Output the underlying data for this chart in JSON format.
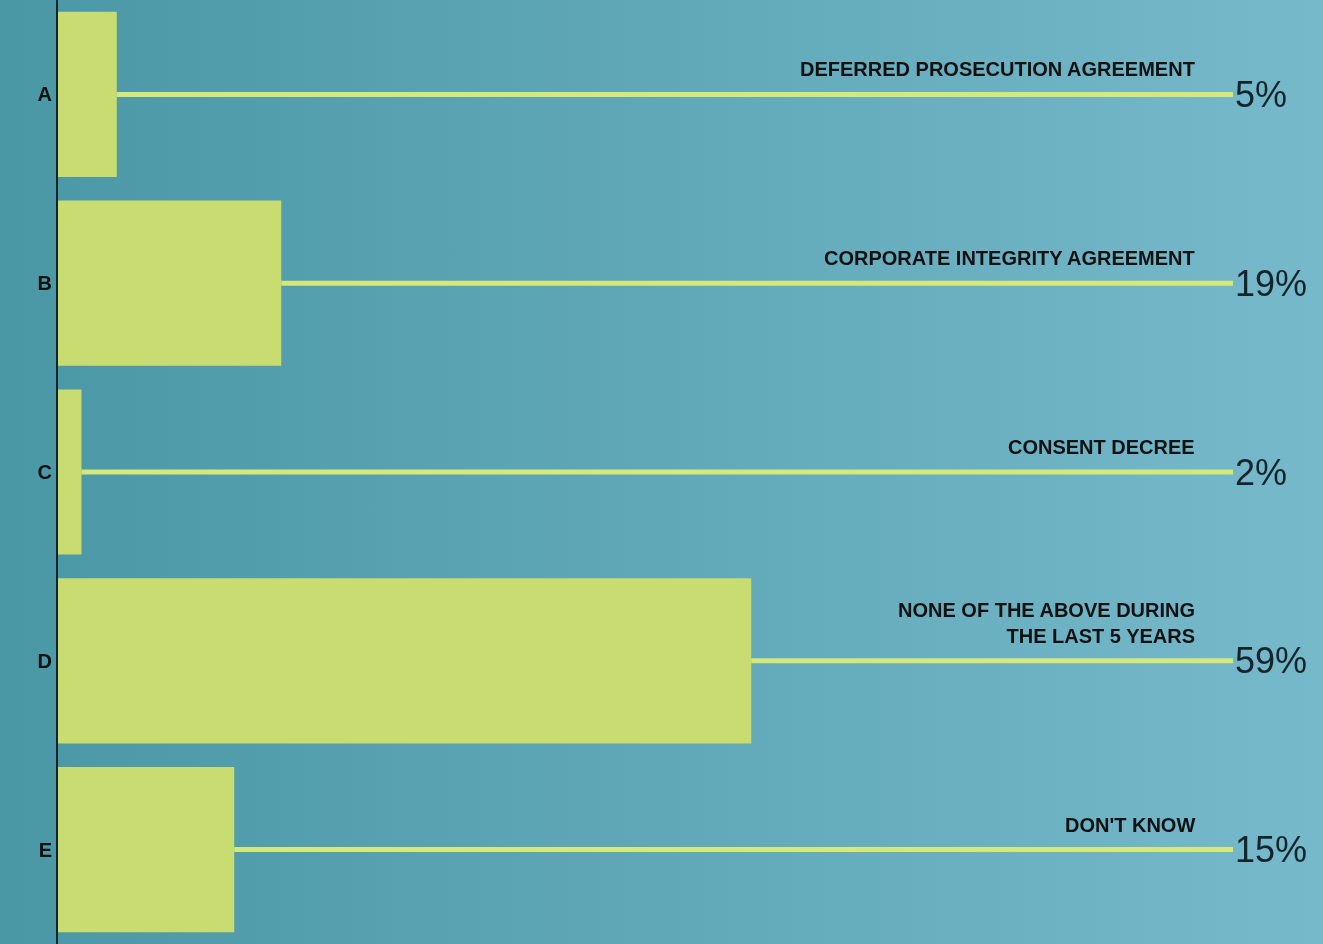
{
  "chart_data": {
    "type": "bar",
    "orientation": "horizontal",
    "categories": [
      "A",
      "B",
      "C",
      "D",
      "E"
    ],
    "values": [
      5,
      19,
      2,
      59,
      15
    ],
    "value_labels": [
      "5%",
      "19%",
      "2%",
      "59%",
      "15%"
    ],
    "color": "#c8dc72",
    "xlim": [
      0,
      100
    ],
    "tick_labels": "y",
    "annotations": [
      "DEFERRED PROSECUTION AGREEMENT",
      "CORPORATE INTEGRITY AGREEMENT",
      "CONSENT DECREE",
      "NONE OF THE ABOVE DURING\nTHE LAST 5 YEARS",
      "DON'T KNOW"
    ]
  }
}
